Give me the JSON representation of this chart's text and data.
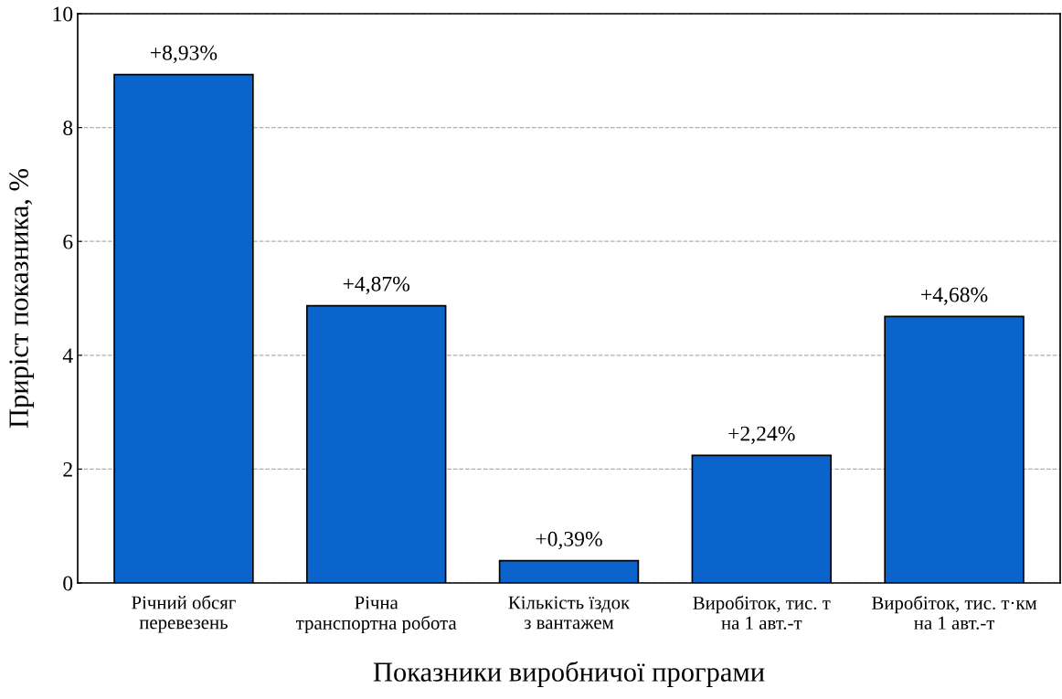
{
  "chart_data": {
    "type": "bar",
    "xlabel": "Показники виробничої програми",
    "ylabel": "Приріст показника, %",
    "categories": [
      "Річний обсяг\nперевезень",
      "Річна\nтранспортна робота",
      "Кількість їздок\nз вантажем",
      "Виробіток, тис. т\nна 1 авт.-т",
      "Виробіток, тис. т·км\nна 1 авт.-т"
    ],
    "values": [
      8.93,
      4.87,
      0.39,
      2.24,
      4.68
    ],
    "value_labels": [
      "+8,93%",
      "+4,87%",
      "+0,39%",
      "+2,24%",
      "+4,68%"
    ],
    "color": "#0a64cc",
    "ylim": [
      0,
      10
    ],
    "yticks": [
      0,
      2,
      4,
      6,
      8,
      10
    ],
    "grid": "y"
  }
}
